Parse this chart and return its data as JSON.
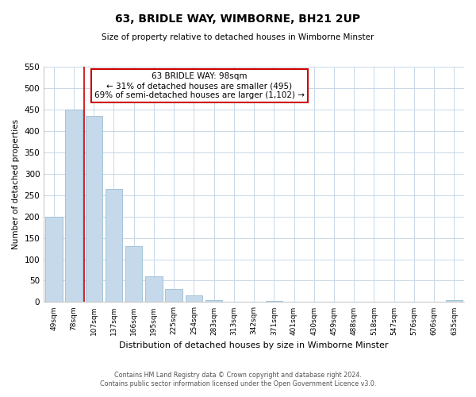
{
  "title": "63, BRIDLE WAY, WIMBORNE, BH21 2UP",
  "subtitle": "Size of property relative to detached houses in Wimborne Minster",
  "xlabel": "Distribution of detached houses by size in Wimborne Minster",
  "ylabel": "Number of detached properties",
  "categories": [
    "49sqm",
    "78sqm",
    "107sqm",
    "137sqm",
    "166sqm",
    "195sqm",
    "225sqm",
    "254sqm",
    "283sqm",
    "313sqm",
    "342sqm",
    "371sqm",
    "401sqm",
    "430sqm",
    "459sqm",
    "488sqm",
    "518sqm",
    "547sqm",
    "576sqm",
    "606sqm",
    "635sqm"
  ],
  "values": [
    200,
    450,
    435,
    265,
    130,
    60,
    30,
    15,
    5,
    0,
    0,
    2,
    0,
    0,
    0,
    0,
    0,
    0,
    0,
    0,
    5
  ],
  "bar_color": "#c5d9ea",
  "bar_edge_color": "#9bbdd4",
  "vline_color": "#cc0000",
  "ylim": [
    0,
    550
  ],
  "yticks": [
    0,
    50,
    100,
    150,
    200,
    250,
    300,
    350,
    400,
    450,
    500,
    550
  ],
  "annotation_line1": "63 BRIDLE WAY: 98sqm",
  "annotation_line2": "← 31% of detached houses are smaller (495)",
  "annotation_line3": "69% of semi-detached houses are larger (1,102) →",
  "footer_line1": "Contains HM Land Registry data © Crown copyright and database right 2024.",
  "footer_line2": "Contains public sector information licensed under the Open Government Licence v3.0.",
  "bg_color": "#ffffff",
  "grid_color": "#c8d8e8",
  "annotation_box_facecolor": "#ffffff",
  "annotation_box_edgecolor": "#cc0000"
}
